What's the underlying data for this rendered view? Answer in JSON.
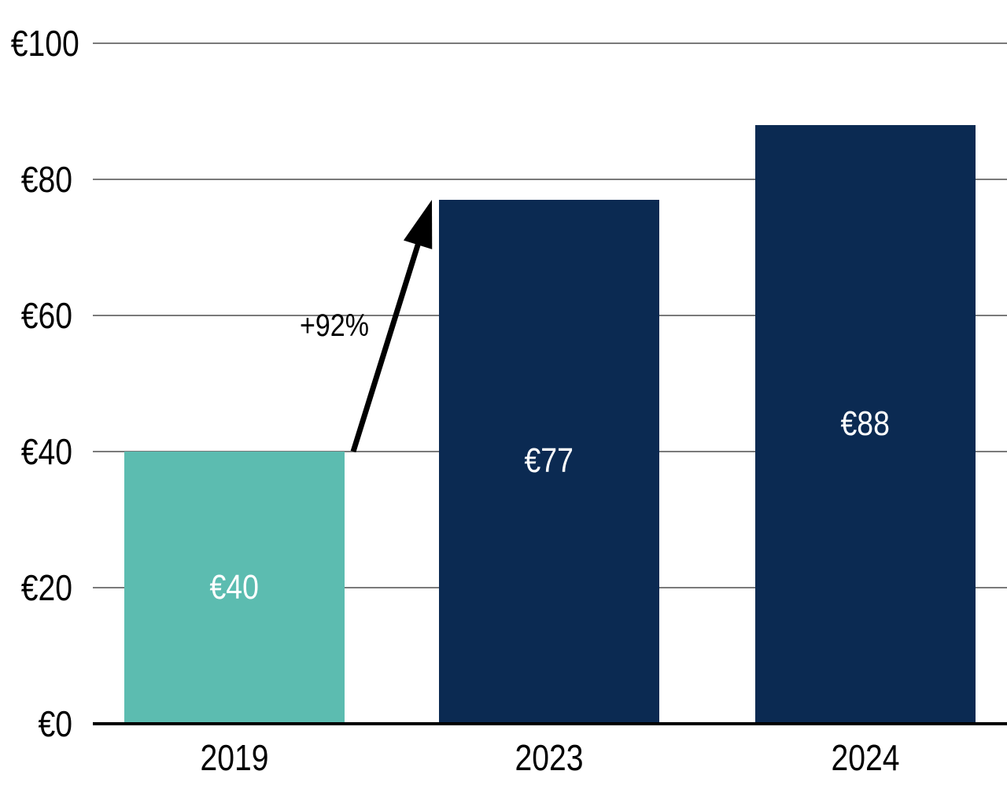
{
  "chart_data": {
    "type": "bar",
    "categories": [
      "2019",
      "2023",
      "2024"
    ],
    "values": [
      40,
      77,
      88
    ],
    "bar_labels": [
      "€40",
      "€77",
      "€88"
    ],
    "bar_colors": [
      "#5CBCB0",
      "#0B2A52",
      "#0B2A52"
    ],
    "title": "",
    "xlabel": "",
    "ylabel": "",
    "ylim": [
      0,
      100
    ],
    "yticks": [
      0,
      20,
      40,
      60,
      80,
      100
    ],
    "ytick_labels": [
      "€0",
      "€20",
      "€40",
      "€60",
      "€80",
      "€100"
    ],
    "grid": "horizontal gridlines on",
    "legend": "none",
    "annotation": {
      "label": "+92%",
      "from_category": "2019",
      "to_category": "2023"
    }
  },
  "colors": {
    "teal_bar": "#5CBCB0",
    "navy_bar": "#0B2A52",
    "gridline": "#7A7A7A",
    "axis_line": "#000000",
    "tick_text": "#000000",
    "bar_label_text": "#FFFFFF",
    "arrow": "#000000",
    "background": "#FFFFFF"
  }
}
